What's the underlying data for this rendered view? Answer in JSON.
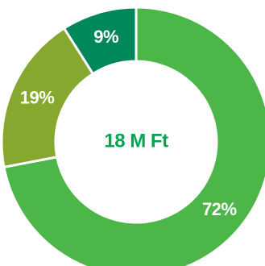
{
  "chart_data": {
    "type": "pie",
    "variant": "donut",
    "categories": [
      "",
      "",
      ""
    ],
    "values": [
      72,
      19,
      9
    ],
    "labels": [
      "72%",
      "19%",
      "9%"
    ],
    "colors": [
      "#4cb748",
      "#87a82f",
      "#00875a"
    ],
    "center_label": "18 M Ft",
    "center_label_color": "#00a650",
    "legend": "none",
    "start_angle": "12 o'clock",
    "direction": "clockwise"
  }
}
